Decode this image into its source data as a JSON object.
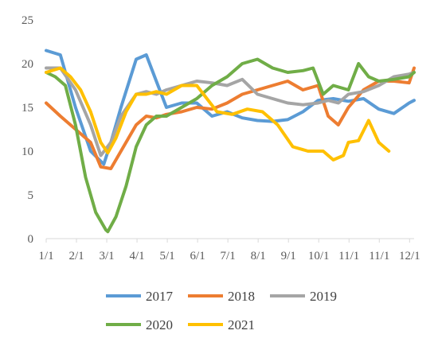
{
  "chart_data": {
    "type": "line",
    "title": "",
    "xlabel": "",
    "ylabel": "",
    "x_ticks": [
      "1/1",
      "2/1",
      "3/1",
      "4/1",
      "5/1",
      "6/1",
      "7/1",
      "8/1",
      "9/1",
      "10/1",
      "11/1",
      "11/1",
      "12/1"
    ],
    "y_ticks": [
      "0",
      "5",
      "10",
      "15",
      "20",
      "25"
    ],
    "ylim": [
      0,
      25
    ],
    "xlim": [
      1,
      365
    ],
    "x_unit": "day of year",
    "grid": false,
    "legend": "bottom",
    "series": [
      {
        "name": "2017",
        "color": "#5B9BD5",
        "x": [
          1,
          15,
          30,
          45,
          58,
          65,
          75,
          90,
          100,
          110,
          120,
          135,
          150,
          165,
          180,
          195,
          210,
          225,
          240,
          255,
          270,
          285,
          300,
          315,
          330,
          345,
          360,
          365
        ],
        "y": [
          21.5,
          21,
          15,
          10,
          8.5,
          11,
          15,
          20.5,
          21,
          18,
          15,
          15.5,
          15.5,
          14,
          14.5,
          13.8,
          13.5,
          13.4,
          13.6,
          14.5,
          15.8,
          16,
          15.7,
          16,
          14.8,
          14.3,
          15.5,
          15.8
        ]
      },
      {
        "name": "2018",
        "color": "#ED7D31",
        "x": [
          1,
          15,
          30,
          45,
          55,
          65,
          75,
          90,
          100,
          110,
          120,
          135,
          150,
          165,
          180,
          195,
          210,
          225,
          240,
          255,
          270,
          280,
          290,
          300,
          315,
          330,
          345,
          360,
          365
        ],
        "y": [
          15.5,
          14,
          12.5,
          11,
          8.2,
          8,
          10,
          13,
          14,
          13.8,
          14.2,
          14.5,
          15,
          14.8,
          15.5,
          16.5,
          17,
          17.5,
          18,
          17,
          17.5,
          14,
          13,
          15,
          17,
          18,
          18,
          17.8,
          19.5
        ]
      },
      {
        "name": "2019",
        "color": "#A5A5A5",
        "x": [
          1,
          15,
          30,
          45,
          55,
          65,
          75,
          90,
          100,
          110,
          120,
          135,
          150,
          165,
          180,
          195,
          210,
          225,
          240,
          255,
          270,
          280,
          290,
          300,
          315,
          330,
          345,
          360,
          365
        ],
        "y": [
          19.5,
          19.5,
          17,
          13,
          9.5,
          11,
          14,
          16.5,
          16.8,
          16.5,
          17,
          17.5,
          18,
          17.8,
          17.5,
          18.2,
          16.5,
          16,
          15.5,
          15.3,
          15.5,
          15.8,
          15.5,
          16.5,
          16.8,
          17.5,
          18.5,
          18.8,
          19
        ]
      },
      {
        "name": "2020",
        "color": "#70AD47",
        "x": [
          1,
          10,
          20,
          30,
          40,
          50,
          60,
          62,
          70,
          80,
          90,
          100,
          110,
          120,
          135,
          150,
          165,
          180,
          195,
          210,
          225,
          240,
          255,
          265,
          275,
          285,
          300,
          310,
          320,
          330,
          345,
          360,
          365
        ],
        "y": [
          19,
          18.5,
          17.5,
          13,
          7,
          3,
          1,
          0.8,
          2.5,
          6,
          10.5,
          13,
          14,
          14,
          15,
          16,
          17.5,
          18.5,
          20,
          20.5,
          19.5,
          19,
          19.2,
          19.5,
          16.5,
          17.5,
          17,
          20,
          18.5,
          18,
          18.2,
          18.5,
          19
        ]
      },
      {
        "name": "2021",
        "color": "#FFC000",
        "x": [
          1,
          15,
          25,
          35,
          45,
          55,
          62,
          70,
          80,
          90,
          100,
          110,
          120,
          135,
          150,
          160,
          170,
          185,
          200,
          215,
          230,
          245,
          260,
          275,
          285,
          295,
          300,
          310,
          320,
          330,
          340
        ],
        "y": [
          19,
          19.5,
          18.5,
          17,
          14.5,
          11,
          9.8,
          11.5,
          14.5,
          16.5,
          16.5,
          16.8,
          16.5,
          17.5,
          17.5,
          16,
          14.5,
          14.2,
          14.8,
          14.5,
          13,
          10.5,
          10,
          10,
          9,
          9.5,
          11,
          11.2,
          13.5,
          11,
          10
        ]
      }
    ]
  }
}
